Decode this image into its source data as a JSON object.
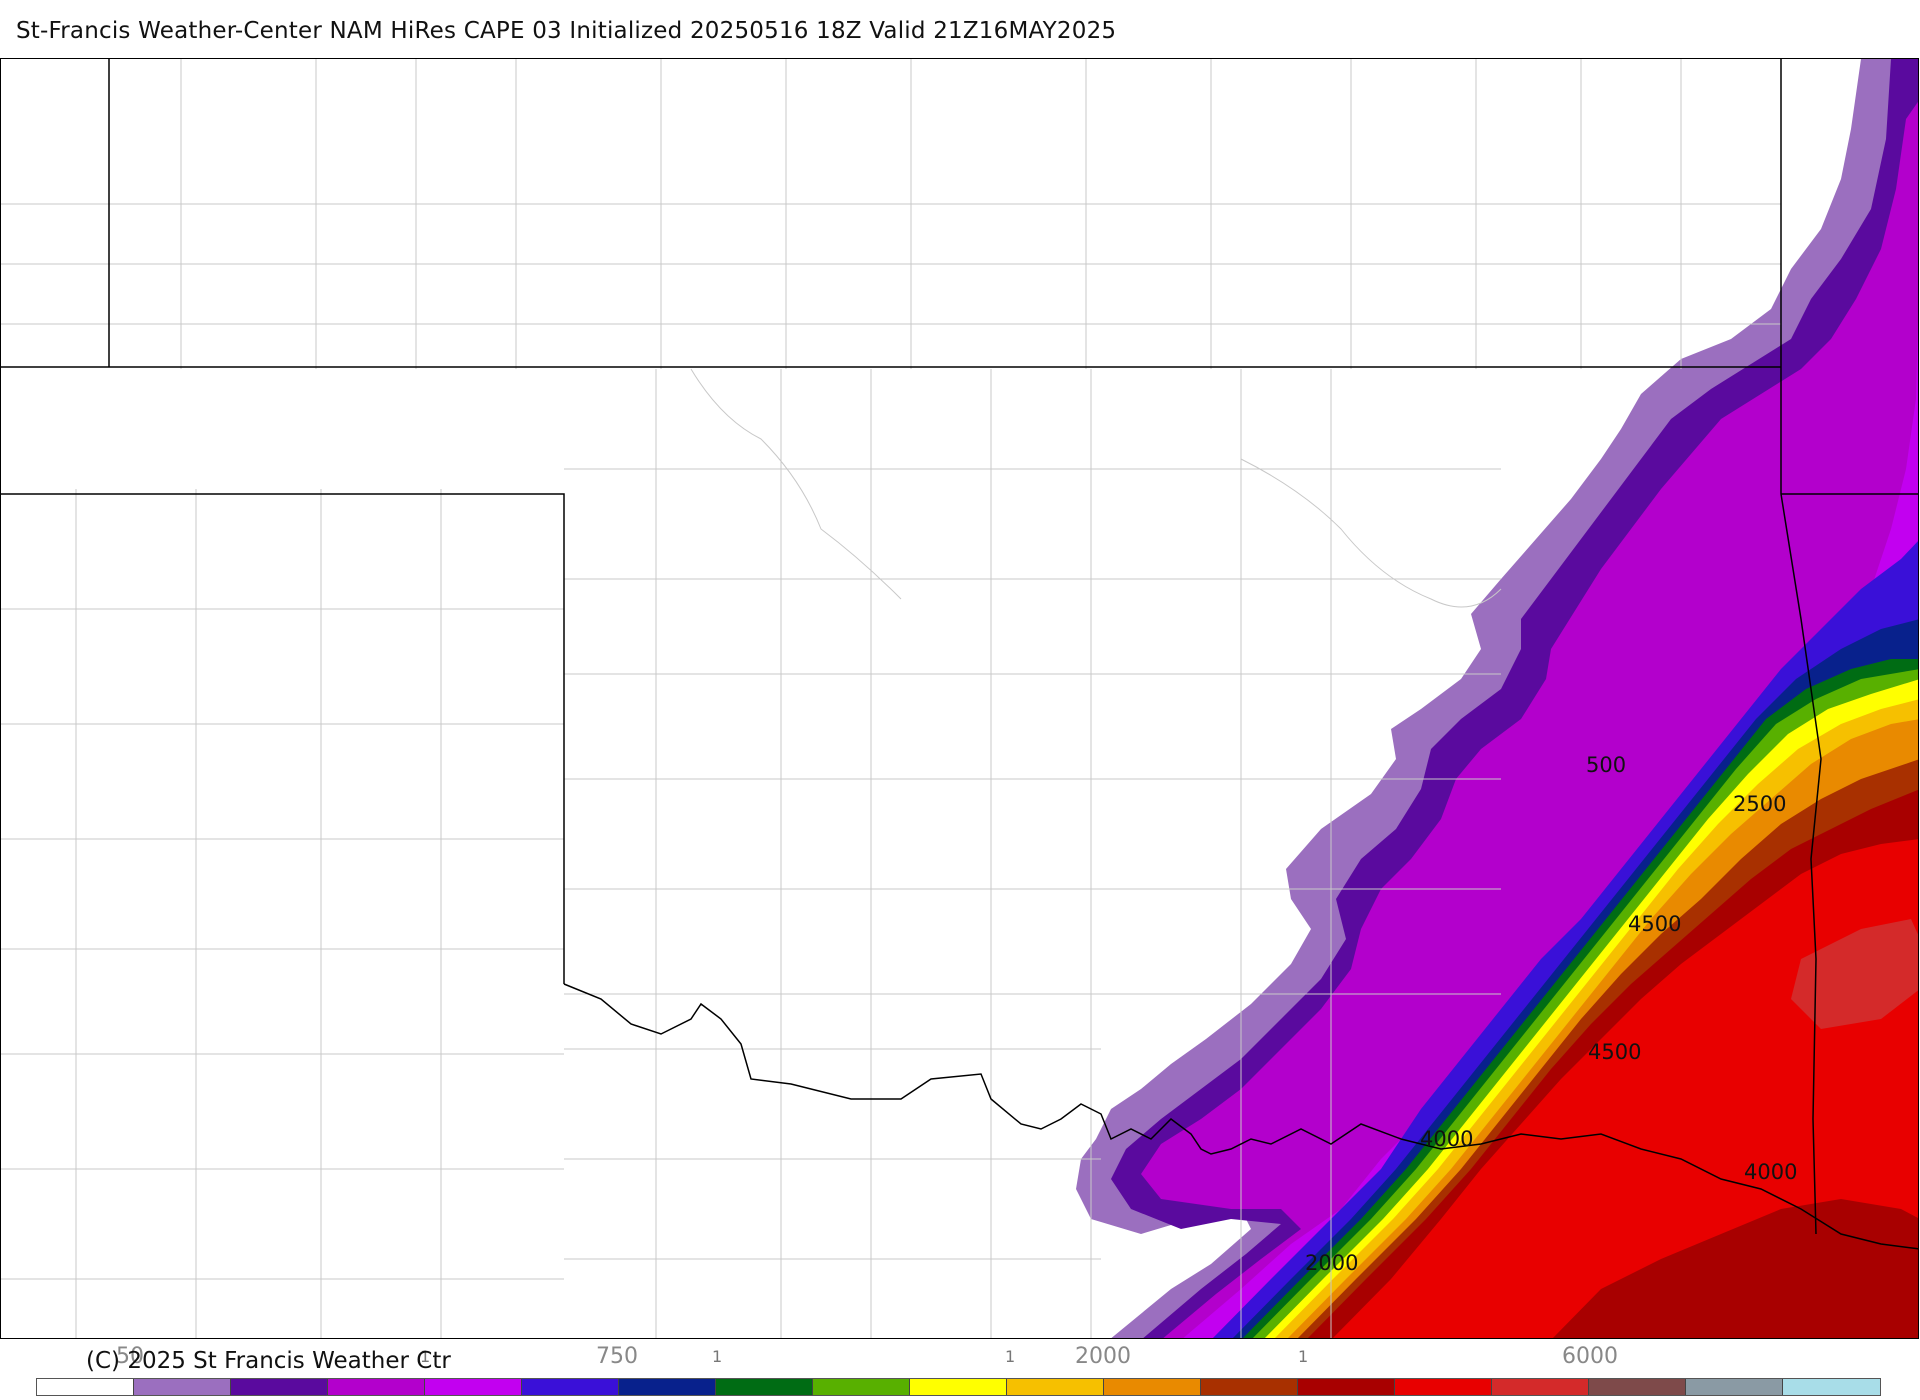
{
  "header": {
    "title": "St-Francis Weather-Center NAM HiRes CAPE  03 Initialized 20250516 18Z Valid 21Z16MAY2025"
  },
  "map": {
    "contour_labels": [
      "500",
      "2500",
      "4500",
      "4500",
      "4000",
      "4000",
      "2000"
    ]
  },
  "legend": {
    "copyright": "(C) 2025 St Francis Weather Ctr",
    "scale_labels": [
      "50",
      "1",
      "750",
      "1",
      "1",
      "2000",
      "1",
      "6000"
    ],
    "colors": [
      "#ffffff",
      "#9b6fbf",
      "#5a0a9e",
      "#b300cc",
      "#c200f0",
      "#3a10d8",
      "#08218c",
      "#006c14",
      "#58b000",
      "#ffff00",
      "#f6c000",
      "#e98a00",
      "#a83000",
      "#a80000",
      "#e80000",
      "#d42a2a",
      "#7e4a4a",
      "#8a9aa4",
      "#a8dde8"
    ]
  }
}
